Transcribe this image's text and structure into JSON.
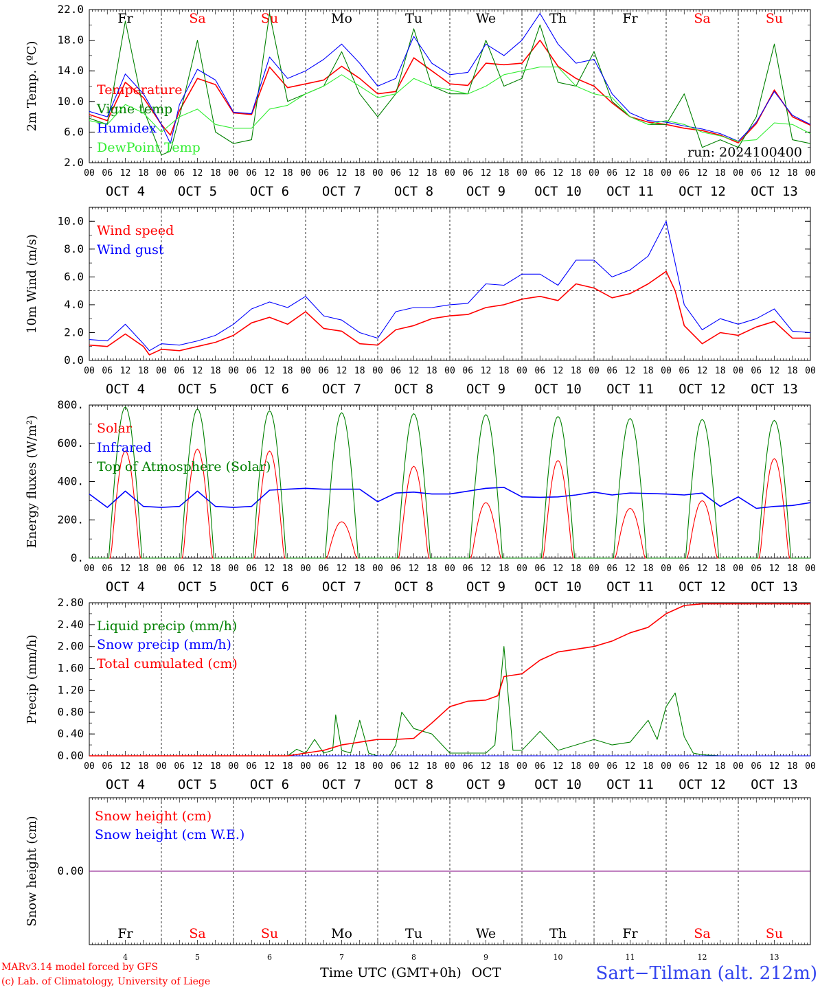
{
  "footer": {
    "model": "MARv3.14 model forced by GFS",
    "copyright": "(c) Lab. of Climatology, University of Liege",
    "xlabel": "Time UTC (GMT+0h)",
    "month": "OCT",
    "station": "Sart−Tilman (alt. 212m)"
  },
  "colors": {
    "red": "#ff0000",
    "blue": "#0000ff",
    "darkgreen": "#008000",
    "lightgreen": "#33ee33",
    "weekend": "#ff0000",
    "weekday": "#000000",
    "snow": "#800080"
  },
  "days": {
    "month": "OCT",
    "dates": [
      "4",
      "5",
      "6",
      "7",
      "8",
      "9",
      "10",
      "11",
      "12",
      "13"
    ],
    "weekdays": [
      "Fr",
      "Sa",
      "Su",
      "Mo",
      "Tu",
      "We",
      "Th",
      "Fr",
      "Sa",
      "Su"
    ],
    "weekend": [
      false,
      true,
      true,
      false,
      false,
      false,
      false,
      false,
      true,
      true
    ],
    "hour_ticks": [
      "00",
      "06",
      "12",
      "18"
    ],
    "end_tick": "00"
  },
  "chart_data": [
    {
      "type": "line",
      "ylabel": "2m Temp. (ºC)",
      "yticks": [
        "22.0",
        "18.0",
        "14.0",
        "10.0",
        "6.0",
        "2.0"
      ],
      "ylim": [
        2,
        22
      ],
      "annotation": "run: 2024100400",
      "x_unit": "hours since Oct 4 00 UTC",
      "series": [
        {
          "name": "Temperature",
          "color": "red",
          "x": [
            0,
            6,
            12,
            18,
            24,
            27,
            30,
            36,
            42,
            48,
            54,
            60,
            66,
            72,
            78,
            84,
            90,
            96,
            102,
            108,
            114,
            120,
            126,
            132,
            138,
            144,
            150,
            156,
            162,
            168,
            174,
            180,
            186,
            192,
            198,
            204,
            210,
            216,
            222,
            228,
            234,
            240
          ],
          "y": [
            8.3,
            7.5,
            12.5,
            10.5,
            7.0,
            5.6,
            8.8,
            13.0,
            12.2,
            8.5,
            8.3,
            14.5,
            11.8,
            12.3,
            12.8,
            14.6,
            13.0,
            11.0,
            11.3,
            15.7,
            14.0,
            12.3,
            12.1,
            15.0,
            14.8,
            15.0,
            18.0,
            14.6,
            13.0,
            12.0,
            9.8,
            8.0,
            7.3,
            7.0,
            6.5,
            6.2,
            5.6,
            4.6,
            7.1,
            11.5,
            8.0,
            6.9
          ]
        },
        {
          "name": "Vigne temp",
          "color": "darkgreen",
          "x": [
            0,
            6,
            12,
            18,
            24,
            27,
            30,
            36,
            42,
            48,
            54,
            60,
            66,
            72,
            78,
            84,
            90,
            96,
            102,
            108,
            114,
            120,
            126,
            132,
            138,
            144,
            150,
            156,
            162,
            168,
            174,
            180,
            186,
            192,
            198,
            204,
            210,
            216,
            222,
            228,
            234,
            240
          ],
          "y": [
            7.8,
            7.0,
            20.5,
            9.0,
            3.0,
            3.5,
            8.0,
            18.0,
            6.0,
            4.5,
            5.0,
            21.5,
            10.0,
            11.0,
            12.0,
            16.5,
            11.0,
            8.0,
            11.0,
            19.5,
            12.0,
            11.0,
            11.0,
            18.0,
            12.0,
            13.0,
            20.0,
            12.5,
            12.0,
            16.5,
            10.0,
            8.0,
            7.0,
            7.0,
            11.0,
            4.0,
            5.0,
            4.0,
            8.0,
            17.5,
            5.0,
            4.5
          ]
        },
        {
          "name": "Humidex",
          "color": "blue",
          "x": [
            0,
            6,
            12,
            18,
            24,
            27,
            30,
            36,
            42,
            48,
            54,
            60,
            66,
            72,
            78,
            84,
            90,
            96,
            102,
            108,
            114,
            120,
            126,
            132,
            138,
            144,
            150,
            156,
            162,
            168,
            174,
            180,
            186,
            192,
            198,
            204,
            210,
            216,
            222,
            228,
            234,
            240
          ],
          "y": [
            8.7,
            8.0,
            13.6,
            11.0,
            7.0,
            4.5,
            9.6,
            14.2,
            12.8,
            8.6,
            8.4,
            15.8,
            13.0,
            14.0,
            15.5,
            17.5,
            15.0,
            12.0,
            13.0,
            18.5,
            15.0,
            13.5,
            13.8,
            17.5,
            16.0,
            18.0,
            21.5,
            17.5,
            15.0,
            15.5,
            11.0,
            8.5,
            7.5,
            7.3,
            6.8,
            6.4,
            5.8,
            4.8,
            7.3,
            11.3,
            8.2,
            7.0
          ]
        },
        {
          "name": "DewPoint Temp",
          "color": "lightgreen",
          "x": [
            0,
            6,
            12,
            18,
            24,
            30,
            36,
            42,
            48,
            54,
            60,
            66,
            72,
            78,
            84,
            90,
            96,
            102,
            108,
            114,
            120,
            126,
            132,
            138,
            144,
            150,
            156,
            162,
            168,
            174,
            180,
            186,
            192,
            198,
            204,
            210,
            216,
            222,
            228,
            234,
            240
          ],
          "y": [
            7.5,
            7.0,
            9.6,
            8.5,
            6.0,
            8.0,
            9.0,
            7.0,
            6.5,
            6.5,
            9.0,
            9.5,
            11.0,
            12.0,
            13.5,
            12.0,
            10.5,
            11.0,
            13.0,
            12.0,
            11.5,
            11.0,
            12.0,
            13.5,
            14.0,
            14.5,
            14.5,
            12.0,
            11.0,
            10.5,
            8.0,
            7.0,
            7.5,
            7.0,
            6.0,
            5.5,
            4.8,
            5.0,
            7.2,
            7.0,
            5.8
          ]
        }
      ]
    },
    {
      "type": "line",
      "ylabel": "10m Wind (m/s)",
      "yticks": [
        "10.0",
        "8.0",
        "6.0",
        "4.0",
        "2.0",
        "0.0"
      ],
      "ylim": [
        0,
        11
      ],
      "reference_line": 5,
      "series": [
        {
          "name": "Wind speed",
          "color": "red",
          "x": [
            0,
            6,
            12,
            18,
            20,
            24,
            30,
            36,
            42,
            48,
            54,
            60,
            66,
            72,
            78,
            84,
            90,
            96,
            102,
            108,
            114,
            120,
            126,
            132,
            138,
            144,
            150,
            156,
            162,
            168,
            174,
            180,
            186,
            192,
            195,
            198,
            204,
            210,
            216,
            222,
            228,
            234,
            240
          ],
          "y": [
            1.1,
            1.0,
            1.9,
            1.0,
            0.4,
            0.8,
            0.7,
            1.0,
            1.3,
            1.8,
            2.7,
            3.1,
            2.6,
            3.5,
            2.3,
            2.1,
            1.2,
            1.1,
            2.2,
            2.5,
            3.0,
            3.2,
            3.3,
            3.8,
            4.0,
            4.4,
            4.6,
            4.3,
            5.5,
            5.2,
            4.5,
            4.8,
            5.5,
            6.4,
            5.0,
            2.5,
            1.2,
            2.0,
            1.8,
            2.4,
            2.8,
            1.6,
            1.6
          ]
        },
        {
          "name": "Wind gust",
          "color": "blue",
          "x": [
            0,
            6,
            12,
            18,
            20,
            24,
            30,
            36,
            42,
            48,
            54,
            60,
            66,
            72,
            78,
            84,
            90,
            96,
            102,
            108,
            114,
            120,
            126,
            132,
            138,
            144,
            150,
            156,
            162,
            168,
            174,
            180,
            186,
            192,
            195,
            198,
            204,
            210,
            216,
            222,
            228,
            234,
            240
          ],
          "y": [
            1.5,
            1.4,
            2.6,
            1.2,
            0.7,
            1.2,
            1.1,
            1.4,
            1.8,
            2.6,
            3.7,
            4.2,
            3.8,
            4.6,
            3.2,
            2.9,
            2.0,
            1.6,
            3.5,
            3.8,
            3.8,
            4.0,
            4.1,
            5.5,
            5.4,
            6.2,
            6.2,
            5.4,
            7.2,
            7.2,
            6.0,
            6.5,
            7.5,
            10.0,
            7.0,
            4.0,
            2.2,
            3.0,
            2.6,
            3.0,
            3.7,
            2.1,
            2.0
          ]
        }
      ]
    },
    {
      "type": "line",
      "ylabel": "Energy fluxes (W/m²)",
      "yticks": [
        "800.",
        "600.",
        "400.",
        "200.",
        "0."
      ],
      "ylim": [
        0,
        800
      ],
      "series": [
        {
          "name": "Solar",
          "color": "red",
          "daily_peak": [
            560,
            570,
            560,
            190,
            480,
            290,
            510,
            260,
            300,
            520
          ]
        },
        {
          "name": "Infrared",
          "color": "blue",
          "x": [
            0,
            6,
            12,
            18,
            24,
            30,
            36,
            42,
            48,
            54,
            60,
            66,
            72,
            78,
            84,
            90,
            96,
            102,
            108,
            114,
            120,
            126,
            132,
            138,
            144,
            150,
            156,
            162,
            168,
            174,
            180,
            186,
            192,
            198,
            204,
            210,
            216,
            222,
            228,
            234,
            240
          ],
          "y": [
            335,
            265,
            350,
            270,
            265,
            270,
            350,
            270,
            265,
            270,
            355,
            360,
            365,
            360,
            360,
            360,
            295,
            340,
            345,
            335,
            335,
            350,
            365,
            370,
            320,
            318,
            320,
            330,
            345,
            330,
            340,
            338,
            335,
            330,
            340,
            270,
            320,
            260,
            270,
            275,
            290
          ]
        },
        {
          "name": "Top of Atmosphere (Solar)",
          "color": "darkgreen",
          "daily_peak": [
            790,
            780,
            770,
            760,
            755,
            750,
            740,
            730,
            725,
            720
          ]
        }
      ]
    },
    {
      "type": "line",
      "ylabel": "Precip (mm/h)",
      "yticks": [
        "2.80",
        "2.40",
        "2.00",
        "1.60",
        "1.20",
        "0.80",
        "0.40",
        "0.00"
      ],
      "ylim": [
        0,
        2.8
      ],
      "series": [
        {
          "name": "Liquid precip (mm/h)",
          "color": "darkgreen",
          "x": [
            0,
            66,
            69,
            72,
            75,
            78,
            81,
            82,
            84,
            87,
            90,
            93,
            96,
            100,
            102,
            104,
            108,
            111,
            114,
            120,
            126,
            132,
            135,
            138,
            141,
            144,
            150,
            156,
            162,
            168,
            174,
            180,
            186,
            189,
            192,
            195,
            198,
            201,
            204,
            210,
            240
          ],
          "y": [
            0,
            0,
            0.12,
            0.05,
            0.3,
            0.05,
            0.1,
            0.75,
            0.1,
            0.05,
            0.65,
            0.05,
            0,
            0,
            0.2,
            0.8,
            0.5,
            0.45,
            0.4,
            0.05,
            0.05,
            0.05,
            0.2,
            2.0,
            0.1,
            0.1,
            0.45,
            0.1,
            0.2,
            0.3,
            0.2,
            0.25,
            0.65,
            0.3,
            0.9,
            1.15,
            0.35,
            0.05,
            0.02,
            0,
            0
          ]
        },
        {
          "name": "Snow precip (mm/h)",
          "color": "blue",
          "x": [
            0,
            240
          ],
          "y": [
            0,
            0
          ]
        },
        {
          "name": "Total cumulated (cm)",
          "color": "red",
          "x": [
            0,
            66,
            72,
            78,
            84,
            90,
            96,
            102,
            108,
            114,
            120,
            126,
            132,
            136,
            138,
            144,
            150,
            156,
            162,
            168,
            174,
            180,
            186,
            192,
            198,
            204,
            210,
            216,
            222,
            228,
            234,
            240
          ],
          "y": [
            0,
            0,
            0.05,
            0.1,
            0.2,
            0.25,
            0.3,
            0.3,
            0.32,
            0.6,
            0.9,
            1.0,
            1.02,
            1.1,
            1.45,
            1.5,
            1.75,
            1.9,
            1.95,
            2.0,
            2.1,
            2.25,
            2.35,
            2.6,
            2.75,
            2.78,
            2.78,
            2.78,
            2.78,
            2.78,
            2.78,
            2.78
          ]
        }
      ]
    },
    {
      "type": "line",
      "ylabel": "Snow height (cm)",
      "yticks": [
        "0.00"
      ],
      "ylim": [
        -1,
        1
      ],
      "series": [
        {
          "name": "Snow height (cm)",
          "color": "red",
          "x": [
            0,
            240
          ],
          "y": [
            0,
            0
          ]
        },
        {
          "name": "Snow height (cm W.E.)",
          "color": "blue",
          "x": [
            0,
            240
          ],
          "y": [
            0,
            0
          ]
        }
      ]
    }
  ]
}
